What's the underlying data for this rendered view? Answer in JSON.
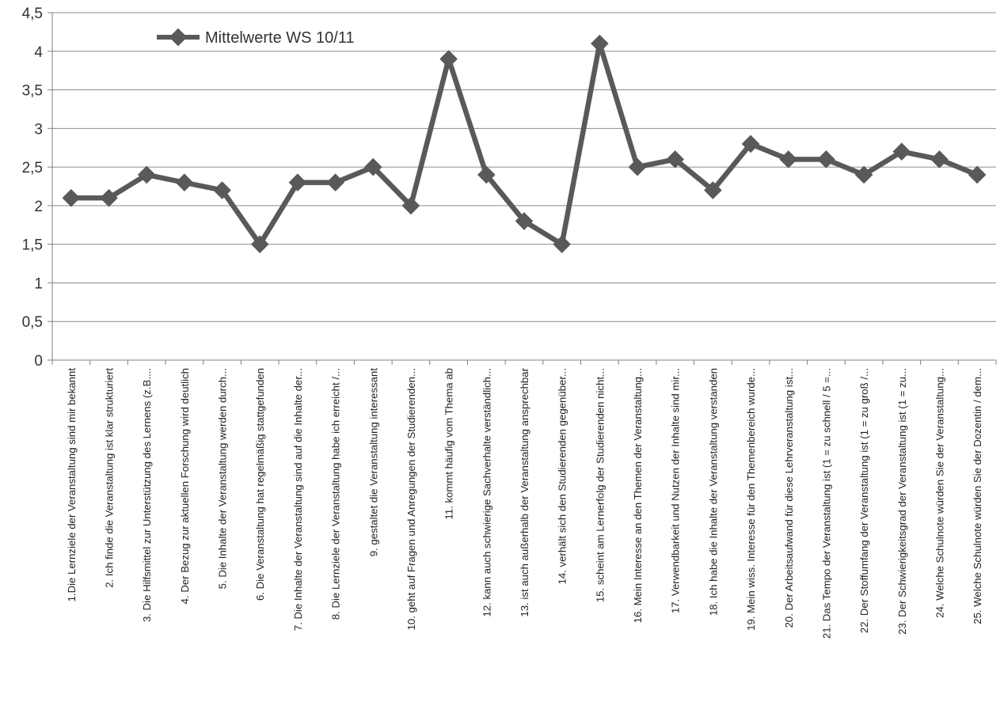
{
  "chart_data": {
    "type": "line",
    "title": "",
    "xlabel": "",
    "ylabel": "",
    "ylim": [
      0,
      4.5
    ],
    "yticks": [
      "0",
      "0,5",
      "1",
      "1,5",
      "2",
      "2,5",
      "3",
      "3,5",
      "4",
      "4,5"
    ],
    "grid": true,
    "legend_position": "top-left",
    "line_color": "#595959",
    "categories": [
      "1.Die Lernziele der Veranstaltung sind mir bekannt",
      "2. Ich finde die Veranstaltung ist klar strukturiert",
      "3. Die Hilfsmittel zur Unterstützung des Lernens (z.B....",
      "4. Der Bezug zur aktuellen Forschung wird deutlich",
      "5. Die Inhalte der Veranstaltung werden durch...",
      "6. Die Veranstaltung hat regelmäßig stattgefunden",
      "7. Die Inhalte der Veranstaltung sind auf die Inhalte der...",
      "8. Die Lernziele der Veranstaltung habe ich erreicht /...",
      "9. gestaltet die Veranstaltung interessant",
      "10. geht auf Fragen und Anregungen der Studierenden...",
      "11. kommt häufig vom Thema ab",
      "12. kann auch schwierige Sachverhalte verständlich...",
      "13. ist auch außerhalb der Veranstaltung ansprechbar",
      "14. verhält sich den Studierenden gegenüber...",
      "15. scheint am Lernerfolg der Studierenden nicht...",
      "16. Mein Interesse an den Themen der Veranstaltung...",
      "17. Verwendbarkeit und Nutzen der Inhalte sind mir...",
      "18. Ich habe die Inhalte der Veranstaltung verstanden",
      "19. Mein wiss. Interesse für den Themenbereich wurde...",
      "20. Der Arbeitsaufwand für diese Lehrveranstaltung ist...",
      "21. Das Tempo der Veranstaltung ist (1 = zu schnell / 5 =...",
      "22. Der Stoffumfang der Veranstaltung ist (1 = zu groß /...",
      "23. Der Schwierigkeitsgrad der Veranstaltung ist (1 = zu...",
      "24. Welche Schulnote würden Sie der Veranstaltung...",
      "25. Welche Schulnote würden Sie der Dozentin / dem..."
    ],
    "series": [
      {
        "name": "Mittelwerte WS 10/11",
        "values": [
          2.1,
          2.1,
          2.4,
          2.3,
          2.2,
          1.5,
          2.3,
          2.3,
          2.5,
          2.0,
          3.9,
          2.4,
          1.8,
          1.5,
          4.1,
          2.5,
          2.6,
          2.2,
          2.8,
          2.6,
          2.6,
          2.4,
          2.7,
          2.6,
          2.4
        ]
      }
    ]
  }
}
